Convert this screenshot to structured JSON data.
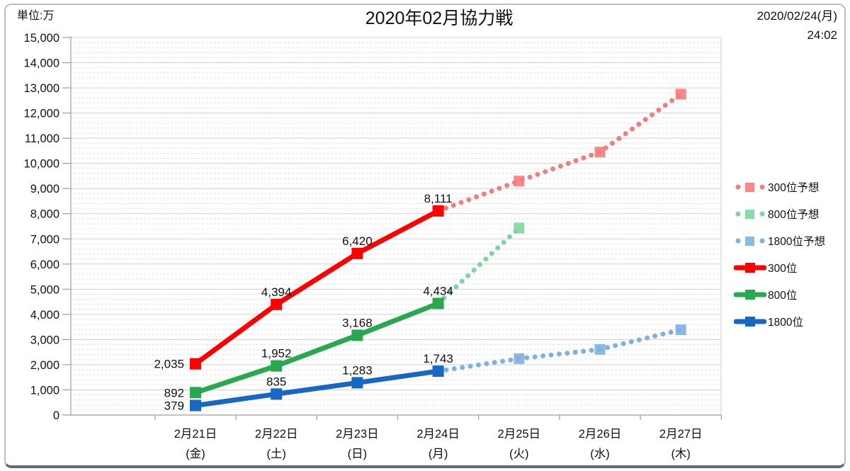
{
  "header": {
    "unit_label": "単位:万",
    "title": "2020年02月協力戦",
    "date_line": "2020/02/24(月)",
    "time_line": "24:02"
  },
  "chart_data": {
    "type": "line",
    "title": "2020年02月協力戦",
    "y_unit": "単位:万",
    "ylim": [
      0,
      15000
    ],
    "y_major_step": 1000,
    "y_minor_step": 200,
    "grid": "on",
    "legend_position": "right",
    "categories": [
      "2月21日",
      "2月22日",
      "2月23日",
      "2月24日",
      "2月25日",
      "2月26日",
      "2月27日"
    ],
    "category_weekdays": [
      "(金)",
      "(土)",
      "(日)",
      "(月)",
      "(火)",
      "(水)",
      "(木)"
    ],
    "series": [
      {
        "name": "300位予想",
        "style": "dotted",
        "color": "#F47C7C",
        "start_index": 3,
        "values": [
          8111,
          9300,
          10450,
          12750
        ],
        "note": "forecast, values after 2/24 estimated from plot"
      },
      {
        "name": "800位予想",
        "style": "dotted",
        "color": "#7DD6A0",
        "start_index": 3,
        "values": [
          4434,
          7430
        ],
        "note": "forecast, value at 2/25 estimated from plot"
      },
      {
        "name": "1800位予想",
        "style": "dotted",
        "color": "#7EB1E0",
        "start_index": 3,
        "values": [
          1743,
          2240,
          2610,
          3390
        ],
        "note": "forecast, values after 2/24 estimated from plot"
      },
      {
        "name": "300位",
        "style": "solid",
        "color": "#FF0000",
        "start_index": 0,
        "values": [
          2035,
          4394,
          6420,
          8111
        ],
        "labels": [
          "2,035",
          "4,394",
          "6,420",
          "8,111"
        ],
        "label_placement": [
          "left",
          "above",
          "above",
          "above"
        ]
      },
      {
        "name": "800位",
        "style": "solid",
        "color": "#29A84F",
        "start_index": 0,
        "values": [
          892,
          1952,
          3168,
          4434
        ],
        "labels": [
          "892",
          "1,952",
          "3,168",
          "4,434"
        ],
        "label_placement": [
          "left",
          "above",
          "above",
          "above"
        ]
      },
      {
        "name": "1800位",
        "style": "solid",
        "color": "#1668C4",
        "start_index": 0,
        "values": [
          379,
          835,
          1283,
          1743
        ],
        "labels": [
          "379",
          "835",
          "1,283",
          "1,743"
        ],
        "label_placement": [
          "left",
          "above",
          "above",
          "above"
        ]
      }
    ]
  }
}
